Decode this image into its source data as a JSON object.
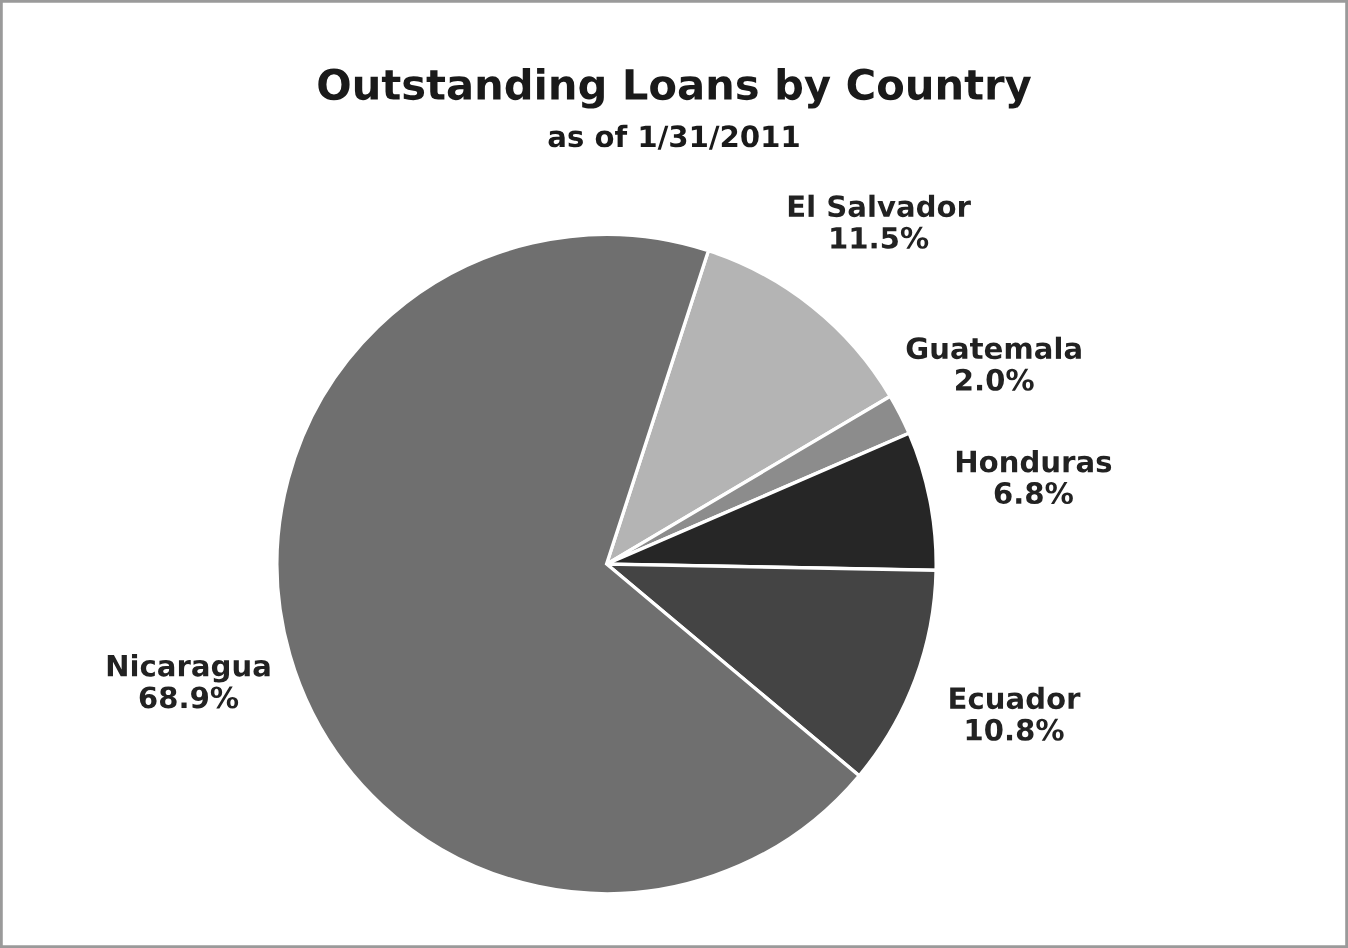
{
  "chart_data": {
    "type": "pie",
    "title": "Outstanding Loans by Country",
    "subtitle": "as of 1/31/2011",
    "categories": [
      "El Salvador",
      "Guatemala",
      "Honduras",
      "Ecuador",
      "Nicaragua"
    ],
    "values": [
      11.5,
      2.0,
      6.8,
      10.8,
      68.9
    ],
    "value_labels": [
      "11.5%",
      "2.0%",
      "6.8%",
      "10.8%",
      "68.9%"
    ],
    "colors": [
      "#b4b4b4",
      "#8c8c8c",
      "#262626",
      "#444444",
      "#6f6f6f"
    ],
    "legend": false
  }
}
